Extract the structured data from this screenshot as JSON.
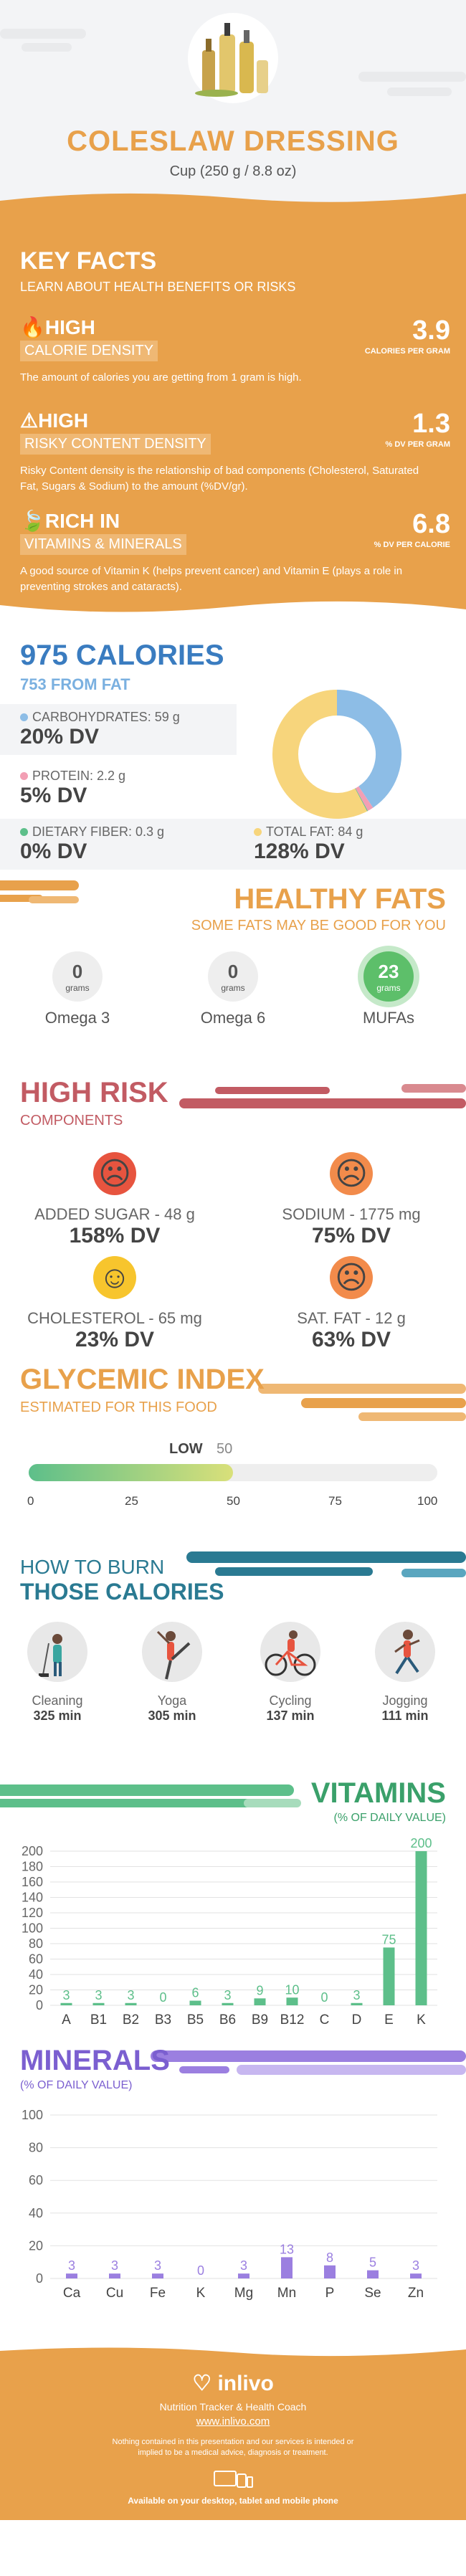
{
  "header": {
    "title": "COLESLAW DRESSING",
    "serving": "Cup (250 g / 8.8 oz)"
  },
  "key_facts": {
    "title": "KEY FACTS",
    "subtitle": "LEARN ABOUT HEALTH BENEFITS OR RISKS",
    "facts": [
      {
        "level": "HIGH",
        "label": "CALORIE DENSITY",
        "value": "3.9",
        "unit": "CALORIES PER GRAM",
        "desc": "The amount of calories you are getting from 1 gram is high.",
        "icon": "flame-icon"
      },
      {
        "level": "HIGH",
        "label": "RISKY CONTENT DENSITY",
        "value": "1.3",
        "unit": "% DV PER GRAM",
        "desc": "Risky Content density is the relationship of bad components (Cholesterol, Saturated Fat, Sugars & Sodium) to the amount (%DV/gr).",
        "icon": "warning-icon"
      },
      {
        "level": "RICH  IN",
        "label": "VITAMINS & MINERALS",
        "value": "6.8",
        "unit": "% DV PER CALORIE",
        "desc": "A good source of Vitamin K (helps prevent cancer) and Vitamin E (plays a role in preventing strokes and cataracts).",
        "icon": "leaf-icon"
      }
    ]
  },
  "calories": {
    "title": "975 CALORIES",
    "from_fat": "753 FROM FAT",
    "macros": [
      {
        "name": "CARBOHYDRATES: 59 g",
        "dv": "20% DV",
        "color": "#8dbde6",
        "grams": 59
      },
      {
        "name": "PROTEIN: 2.2 g",
        "dv": "5% DV",
        "color": "#f29fb4",
        "grams": 2.2
      },
      {
        "name": "DIETARY FIBER: 0.3 g",
        "dv": "0% DV",
        "color": "#5dbf8a",
        "grams": 0.3
      },
      {
        "name": "TOTAL FAT: 84 g",
        "dv": "128% DV",
        "color": "#f7d57c",
        "grams": 84
      }
    ]
  },
  "healthy_fats": {
    "title": "HEALTHY FATS",
    "subtitle": "SOME FATS MAY BE GOOD FOR YOU",
    "items": [
      {
        "value": "0",
        "unit": "grams",
        "name": "Omega 3",
        "color": "#eeeeee",
        "text_color": "#555555"
      },
      {
        "value": "0",
        "unit": "grams",
        "name": "Omega 6",
        "color": "#eeeeee",
        "text_color": "#555555"
      },
      {
        "value": "23",
        "unit": "grams",
        "name": "MUFAs",
        "color": "#5dbf6a",
        "text_color": "#ffffff"
      }
    ]
  },
  "risk": {
    "title": "HIGH RISK",
    "subtitle": "COMPONENTS",
    "items": [
      {
        "name": "ADDED SUGAR - 48 g",
        "dv": "158% DV",
        "face": "☹",
        "color": "#e7543f"
      },
      {
        "name": "SODIUM - 1775 mg",
        "dv": "75% DV",
        "face": "☹",
        "color": "#f28b4b"
      },
      {
        "name": "CHOLESTEROL - 65 mg",
        "dv": "23% DV",
        "face": "☺",
        "color": "#f7c52d"
      },
      {
        "name": "SAT. FAT - 12 g",
        "dv": "63% DV",
        "face": "☹",
        "color": "#f28b4b"
      }
    ]
  },
  "glycemic": {
    "title": "GLYCEMIC INDEX",
    "subtitle": "ESTIMATED FOR THIS FOOD",
    "level": "LOW",
    "value": "50",
    "scale": [
      "0",
      "25",
      "50",
      "75",
      "100"
    ],
    "fraction": 0.5
  },
  "burn": {
    "title_line1": "HOW TO BURN",
    "title_line2": "THOSE CALORIES",
    "activities": [
      {
        "name": "Cleaning",
        "minutes": "325 min"
      },
      {
        "name": "Yoga",
        "minutes": "305 min"
      },
      {
        "name": "Cycling",
        "minutes": "137 min"
      },
      {
        "name": "Jogging",
        "minutes": "111 min"
      }
    ]
  },
  "vitamins_title": "VITAMINS",
  "vitamins_sub": "(% OF DAILY VALUE)",
  "minerals_title": "MINERALS",
  "minerals_sub": "(% OF DAILY VALUE)",
  "chart_data": [
    {
      "type": "bar",
      "title": "VITAMINS",
      "subtitle": "(% OF DAILY VALUE)",
      "categories": [
        "A",
        "B1",
        "B2",
        "B3",
        "B5",
        "B6",
        "B9",
        "B12",
        "C",
        "D",
        "E",
        "K"
      ],
      "values": [
        3,
        3,
        3,
        0,
        6,
        3,
        9,
        10,
        0,
        3,
        75,
        200
      ],
      "ylim": [
        0,
        200
      ],
      "yticks": [
        0,
        20,
        40,
        60,
        80,
        100,
        120,
        140,
        160,
        180,
        200
      ],
      "color": "#5dbf8a",
      "grid": true
    },
    {
      "type": "bar",
      "title": "MINERALS",
      "subtitle": "(% OF DAILY VALUE)",
      "categories": [
        "Ca",
        "Cu",
        "Fe",
        "K",
        "Mg",
        "Mn",
        "P",
        "Se",
        "Zn"
      ],
      "values": [
        3,
        3,
        3,
        0,
        3,
        13,
        8,
        5,
        3
      ],
      "ylim": [
        0,
        100
      ],
      "yticks": [
        0,
        20,
        40,
        60,
        80,
        100
      ],
      "color": "#9b7fe0",
      "grid": true
    }
  ],
  "footer": {
    "brand": "inlivo",
    "tagline": "Nutrition Tracker & Health Coach",
    "url": "www.inlivo.com",
    "disclaimer": "Nothing contained in this presentation and our services is intended or implied to be a medical advice, diagnosis or treatment.",
    "devices": "Available on your desktop, tablet and mobile phone"
  }
}
